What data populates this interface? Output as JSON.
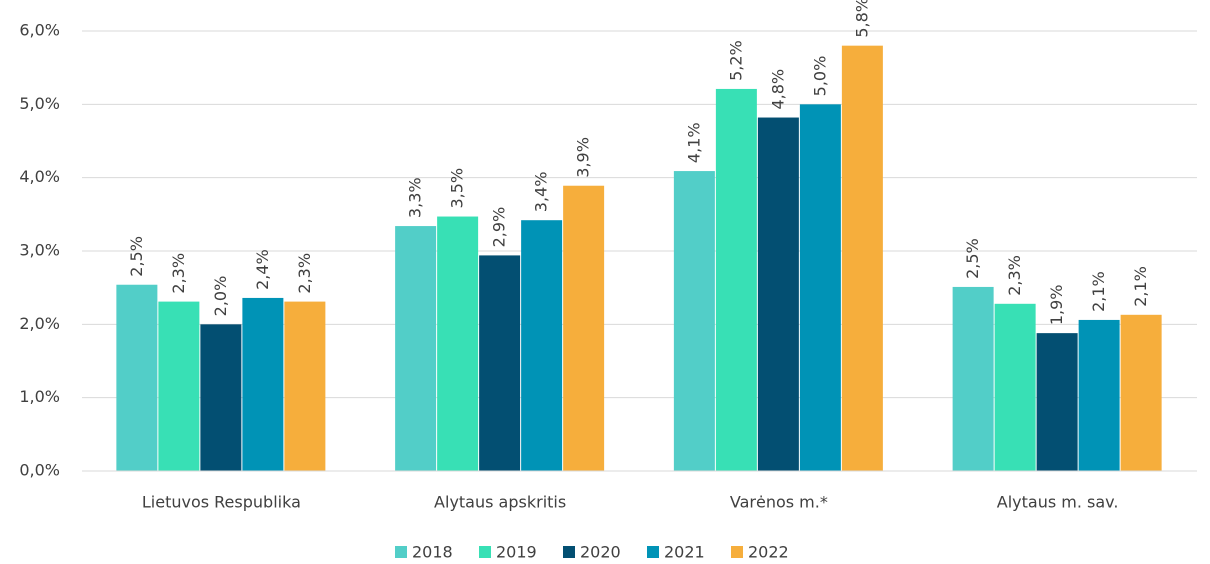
{
  "chart_data": {
    "type": "bar",
    "categories": [
      "Lietuvos Respublika",
      "Alytaus apskritis",
      "Varėnos m.*",
      "Alytaus m. sav."
    ],
    "series": [
      {
        "name": "2018",
        "color": "#52cec8",
        "values": [
          2.54,
          3.34,
          4.09,
          2.51
        ],
        "value_labels": [
          "2,5%",
          "3,3%",
          "4,1%",
          "2,5%"
        ]
      },
      {
        "name": "2019",
        "color": "#38e0b5",
        "values": [
          2.31,
          3.47,
          5.21,
          2.28
        ],
        "value_labels": [
          "2,3%",
          "3,5%",
          "5,2%",
          "2,3%"
        ]
      },
      {
        "name": "2020",
        "color": "#034f72",
        "values": [
          2.0,
          2.94,
          4.82,
          1.88
        ],
        "value_labels": [
          "2,0%",
          "2,9%",
          "4,8%",
          "1,9%"
        ]
      },
      {
        "name": "2021",
        "color": "#0093b6",
        "values": [
          2.36,
          3.42,
          5.0,
          2.06
        ],
        "value_labels": [
          "2,4%",
          "3,4%",
          "5,0%",
          "2,1%"
        ]
      },
      {
        "name": "2022",
        "color": "#f6ae3c",
        "values": [
          2.31,
          3.89,
          5.8,
          2.13
        ],
        "value_labels": [
          "2,3%",
          "3,9%",
          "5,8%",
          "2,1%"
        ]
      }
    ],
    "ylim": [
      0,
      6
    ],
    "yticks": [
      {
        "value": 0,
        "label": "0,0%"
      },
      {
        "value": 1,
        "label": "1,0%"
      },
      {
        "value": 2,
        "label": "2,0%"
      },
      {
        "value": 3,
        "label": "3,0%"
      },
      {
        "value": 4,
        "label": "4,0%"
      },
      {
        "value": 5,
        "label": "5,0%"
      },
      {
        "value": 6,
        "label": "6,0%"
      }
    ],
    "grid": true,
    "legend": "bottom"
  }
}
